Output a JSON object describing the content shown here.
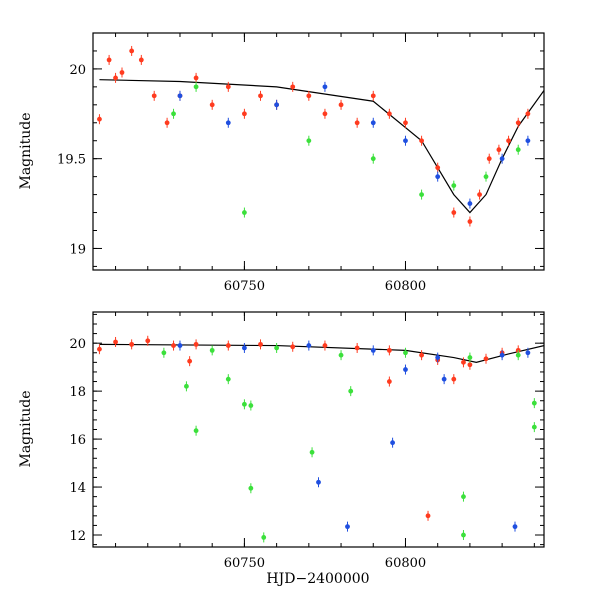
{
  "chart_data": [
    {
      "type": "scatter",
      "title": "",
      "xlabel": "",
      "ylabel": "Magnitude",
      "xlim": [
        60703,
        60843
      ],
      "ylim": [
        20.2,
        18.88
      ],
      "y_inverted": true,
      "xticks": [
        60750,
        60800
      ],
      "yticks": [
        19,
        19.5,
        20
      ],
      "xtick_labels": [
        "60750",
        "60800"
      ],
      "ytick_labels": [
        "19",
        "19.5",
        "20"
      ],
      "grid": false,
      "legend": "none",
      "series": [
        {
          "color": "#ff3b1f",
          "x": [
            60705,
            60708,
            60710,
            60712,
            60715,
            60718,
            60722,
            60726,
            60730,
            60735,
            60740,
            60745,
            60750,
            60755,
            60760,
            60765,
            60770,
            60775,
            60780,
            60785,
            60790,
            60795,
            60800,
            60805,
            60810,
            60815,
            60820,
            60823,
            60826,
            60829,
            60832,
            60835,
            60838
          ],
          "y": [
            19.72,
            20.05,
            19.95,
            19.98,
            20.1,
            20.05,
            19.85,
            19.7,
            19.85,
            19.95,
            19.8,
            19.9,
            19.75,
            19.85,
            19.8,
            19.9,
            19.85,
            19.75,
            19.8,
            19.7,
            19.85,
            19.75,
            19.7,
            19.6,
            19.45,
            19.2,
            19.15,
            19.3,
            19.5,
            19.55,
            19.6,
            19.7,
            19.75
          ]
        },
        {
          "color": "#1f4fe0",
          "x": [
            60730,
            60745,
            60760,
            60775,
            60790,
            60800,
            60810,
            60820,
            60830,
            60838
          ],
          "y": [
            19.85,
            19.7,
            19.8,
            19.9,
            19.7,
            19.6,
            19.4,
            19.25,
            19.5,
            19.6
          ]
        },
        {
          "color": "#3be03b",
          "x": [
            60728,
            60735,
            60750,
            60770,
            60790,
            60805,
            60815,
            60825,
            60835
          ],
          "y": [
            19.75,
            19.9,
            19.2,
            19.6,
            19.5,
            19.3,
            19.35,
            19.4,
            19.55
          ]
        }
      ],
      "model_line": {
        "color": "#000000",
        "x": [
          60705,
          60730,
          60760,
          60790,
          60805,
          60815,
          60820,
          60825,
          60830,
          60835,
          60843
        ],
        "y": [
          19.94,
          19.93,
          19.9,
          19.82,
          19.6,
          19.3,
          19.2,
          19.3,
          19.5,
          19.68,
          19.88
        ]
      }
    },
    {
      "type": "scatter",
      "title": "",
      "xlabel": "HJD−2400000",
      "ylabel": "Magnitude",
      "xlim": [
        60703,
        60843
      ],
      "ylim": [
        21.3,
        11.5
      ],
      "y_inverted": true,
      "xticks": [
        60750,
        60800
      ],
      "yticks": [
        12,
        14,
        16,
        18,
        20
      ],
      "xtick_labels": [
        "60750",
        "60800"
      ],
      "ytick_labels": [
        "12",
        "14",
        "16",
        "18",
        "20"
      ],
      "grid": false,
      "legend": "none",
      "series": [
        {
          "color": "#ff3b1f",
          "x": [
            60705,
            60710,
            60715,
            60720,
            60728,
            60735,
            60745,
            60755,
            60765,
            60775,
            60785,
            60795,
            60805,
            60810,
            60815,
            60818,
            60820,
            60825,
            60830,
            60835
          ],
          "y": [
            19.75,
            20.05,
            19.95,
            20.1,
            19.9,
            19.95,
            19.9,
            19.95,
            19.85,
            19.9,
            19.8,
            19.7,
            19.5,
            19.3,
            18.5,
            19.2,
            19.1,
            19.35,
            19.6,
            19.7
          ]
        },
        {
          "color": "#ff3b1f",
          "x": [
            60733,
            60807,
            60795
          ],
          "y": [
            19.25,
            12.8,
            18.4
          ]
        },
        {
          "color": "#1f4fe0",
          "x": [
            60730,
            60750,
            60770,
            60790,
            60810,
            60830,
            60838
          ],
          "y": [
            19.9,
            19.8,
            19.9,
            19.7,
            19.4,
            19.5,
            19.6
          ]
        },
        {
          "color": "#1f4fe0",
          "x": [
            60773,
            60782,
            60796,
            60834,
            60800,
            60812
          ],
          "y": [
            14.2,
            12.35,
            15.85,
            12.35,
            18.9,
            18.5
          ]
        },
        {
          "color": "#3be03b",
          "x": [
            60725,
            60740,
            60760,
            60780,
            60800,
            60820,
            60835
          ],
          "y": [
            19.6,
            19.7,
            19.8,
            19.5,
            19.6,
            19.4,
            19.5
          ]
        },
        {
          "color": "#3be03b",
          "x": [
            60732,
            60735,
            60752,
            60756,
            60750,
            60752,
            60771,
            60818,
            60818,
            60840,
            60840,
            60783,
            60745
          ],
          "y": [
            18.2,
            16.35,
            13.95,
            11.9,
            17.45,
            17.4,
            15.45,
            12.0,
            13.6,
            16.5,
            17.5,
            18.0,
            18.5
          ]
        }
      ],
      "model_line": {
        "color": "#000000",
        "x": [
          60705,
          60760,
          60800,
          60815,
          60822,
          60832,
          60843
        ],
        "y": [
          19.95,
          19.9,
          19.7,
          19.4,
          19.2,
          19.55,
          19.9
        ]
      }
    }
  ]
}
